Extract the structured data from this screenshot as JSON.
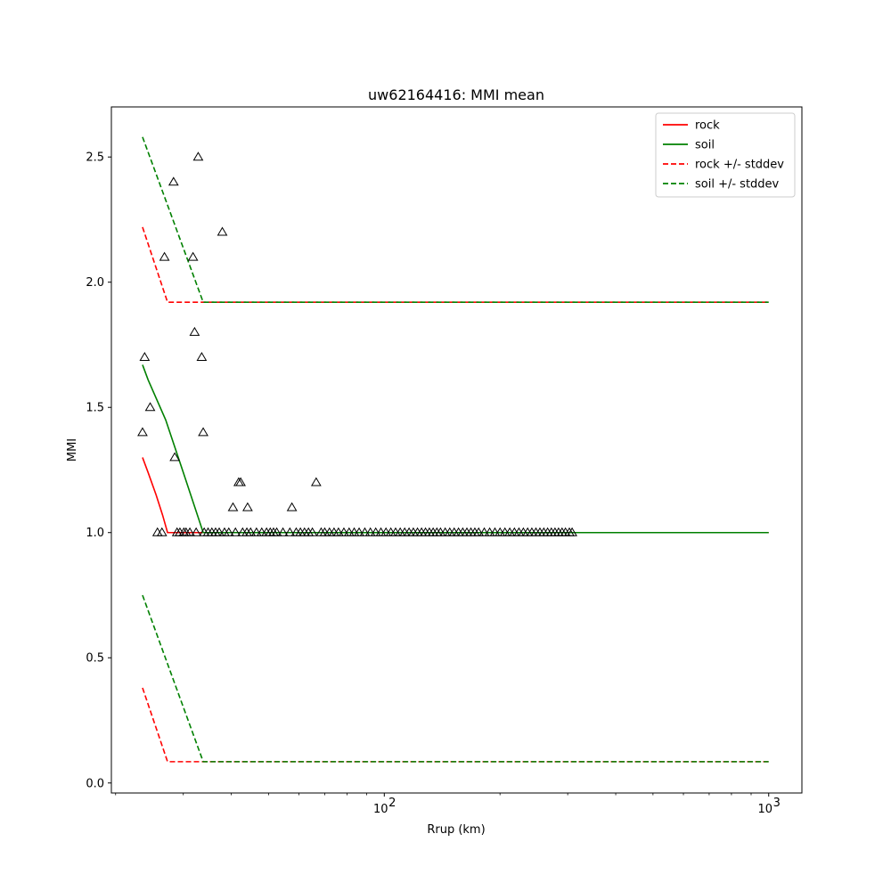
{
  "chart_data": {
    "type": "line",
    "title": "uw62164416: MMI mean",
    "xlabel": "Rrup (km)",
    "ylabel": "MMI",
    "xscale": "log",
    "xlim": [
      19.5,
      1220
    ],
    "ylim": [
      -0.04,
      2.7
    ],
    "x_tick_labels": [
      {
        "value": 100,
        "base": "10",
        "exp": "2"
      },
      {
        "value": 1000,
        "base": "10",
        "exp": "3"
      }
    ],
    "y_ticks": [
      "0.0",
      "0.5",
      "1.0",
      "1.5",
      "2.0",
      "2.5"
    ],
    "legend_placement": "upper right",
    "series": [
      {
        "name": "rock",
        "color": "#ff0000",
        "style": "solid",
        "x": [
          23.5,
          24.3,
          25.5,
          26.5,
          27.3,
          1000
        ],
        "y": [
          1.3,
          1.24,
          1.15,
          1.07,
          1.0,
          1.0
        ]
      },
      {
        "name": "soil",
        "color": "#008000",
        "style": "solid",
        "x": [
          23.5,
          24.3,
          27.0,
          30.0,
          33.8,
          1000
        ],
        "y": [
          1.67,
          1.61,
          1.45,
          1.24,
          1.0,
          1.0
        ]
      },
      {
        "name": "rock +/- stddev",
        "color": "#ff0000",
        "style": "dashed",
        "x": [
          23.5,
          27.3,
          1000
        ],
        "y": [
          2.22,
          1.92,
          1.92
        ]
      },
      {
        "name": "rock +/- stddev",
        "color": "#ff0000",
        "style": "dashed",
        "legend": false,
        "x": [
          23.5,
          27.3,
          1000
        ],
        "y": [
          0.38,
          0.085,
          0.085
        ]
      },
      {
        "name": "soil +/- stddev",
        "color": "#008000",
        "style": "dashed",
        "x": [
          23.5,
          33.8,
          1000
        ],
        "y": [
          2.58,
          1.92,
          1.92
        ]
      },
      {
        "name": "soil +/- stddev",
        "color": "#008000",
        "style": "dashed",
        "legend": false,
        "x": [
          23.5,
          33.8,
          1000
        ],
        "y": [
          0.75,
          0.085,
          0.085
        ]
      }
    ],
    "observations": {
      "marker": "triangle-open",
      "color": "#000000",
      "points": [
        [
          23.5,
          1.4
        ],
        [
          23.8,
          1.7
        ],
        [
          24.6,
          1.5
        ],
        [
          25.7,
          1.0
        ],
        [
          26.4,
          1.0
        ],
        [
          26.8,
          2.1
        ],
        [
          28.3,
          2.4
        ],
        [
          28.5,
          1.3
        ],
        [
          28.9,
          1.0
        ],
        [
          29.4,
          1.0
        ],
        [
          30.1,
          1.0
        ],
        [
          30.5,
          1.0
        ],
        [
          31.2,
          1.0
        ],
        [
          31.8,
          2.1
        ],
        [
          32.1,
          1.8
        ],
        [
          32.4,
          1.0
        ],
        [
          32.8,
          2.5
        ],
        [
          33.5,
          1.7
        ],
        [
          33.8,
          1.4
        ],
        [
          34.0,
          1.0
        ],
        [
          34.8,
          1.0
        ],
        [
          35.6,
          1.0
        ],
        [
          36.4,
          1.0
        ],
        [
          37.2,
          1.0
        ],
        [
          37.9,
          2.2
        ],
        [
          38.4,
          1.0
        ],
        [
          39.4,
          1.0
        ],
        [
          40.4,
          1.1
        ],
        [
          41.0,
          1.0
        ],
        [
          41.8,
          1.2
        ],
        [
          42.3,
          1.2
        ],
        [
          42.8,
          1.0
        ],
        [
          43.9,
          1.0
        ],
        [
          44.1,
          1.1
        ],
        [
          44.9,
          1.0
        ],
        [
          46.5,
          1.0
        ],
        [
          48.0,
          1.0
        ],
        [
          49.4,
          1.0
        ],
        [
          50.5,
          1.0
        ],
        [
          51.5,
          1.0
        ],
        [
          52.5,
          1.0
        ],
        [
          54.5,
          1.0
        ],
        [
          56.8,
          1.0
        ],
        [
          57.5,
          1.1
        ],
        [
          59.0,
          1.0
        ],
        [
          60.5,
          1.0
        ],
        [
          62.0,
          1.0
        ],
        [
          63.5,
          1.0
        ],
        [
          65.0,
          1.0
        ],
        [
          66.5,
          1.2
        ],
        [
          68.5,
          1.0
        ],
        [
          70.0,
          1.0
        ],
        [
          72.0,
          1.0
        ],
        [
          74.0,
          1.0
        ],
        [
          76.0,
          1.0
        ],
        [
          78.5,
          1.0
        ],
        [
          81.0,
          1.0
        ],
        [
          83.5,
          1.0
        ],
        [
          86.0,
          1.0
        ],
        [
          89.0,
          1.0
        ],
        [
          92.0,
          1.0
        ],
        [
          95.0,
          1.0
        ],
        [
          98.0,
          1.0
        ],
        [
          101.0,
          1.0
        ],
        [
          104.0,
          1.0
        ],
        [
          107.0,
          1.0
        ],
        [
          110.0,
          1.0
        ],
        [
          113.0,
          1.0
        ],
        [
          116.0,
          1.0
        ],
        [
          119.0,
          1.0
        ],
        [
          122.0,
          1.0
        ],
        [
          125.0,
          1.0
        ],
        [
          128.0,
          1.0
        ],
        [
          131.0,
          1.0
        ],
        [
          134.0,
          1.0
        ],
        [
          137.0,
          1.0
        ],
        [
          140.0,
          1.0
        ],
        [
          144.0,
          1.0
        ],
        [
          148.0,
          1.0
        ],
        [
          152.0,
          1.0
        ],
        [
          156.0,
          1.0
        ],
        [
          160.0,
          1.0
        ],
        [
          164.0,
          1.0
        ],
        [
          168.0,
          1.0
        ],
        [
          172.0,
          1.0
        ],
        [
          176.0,
          1.0
        ],
        [
          182.0,
          1.0
        ],
        [
          188.0,
          1.0
        ],
        [
          194.0,
          1.0
        ],
        [
          200.0,
          1.0
        ],
        [
          206.0,
          1.0
        ],
        [
          212.0,
          1.0
        ],
        [
          218.0,
          1.0
        ],
        [
          224.0,
          1.0
        ],
        [
          230.0,
          1.0
        ],
        [
          236.0,
          1.0
        ],
        [
          242.0,
          1.0
        ],
        [
          248.0,
          1.0
        ],
        [
          254.0,
          1.0
        ],
        [
          260.0,
          1.0
        ],
        [
          266.0,
          1.0
        ],
        [
          272.0,
          1.0
        ],
        [
          278.0,
          1.0
        ],
        [
          284.0,
          1.0
        ],
        [
          290.0,
          1.0
        ],
        [
          296.0,
          1.0
        ],
        [
          303.0,
          1.0
        ],
        [
          308.0,
          1.0
        ]
      ]
    }
  }
}
